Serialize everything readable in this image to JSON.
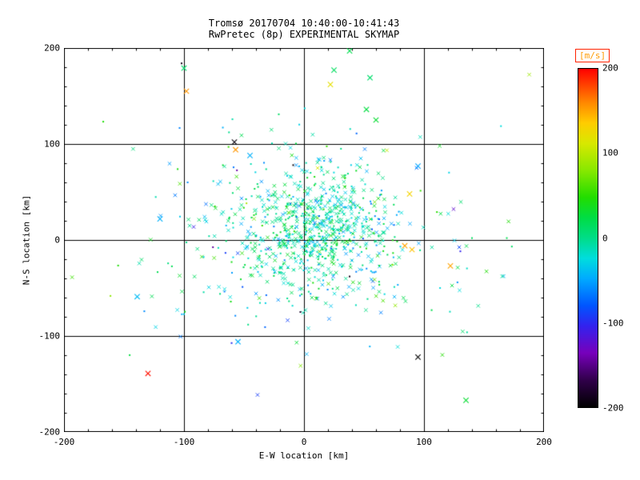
{
  "chart_data": {
    "type": "scatter",
    "title": "Tromsø 20170704 10:40:00-10:41:43",
    "subtitle": "RwPretec (8p) EXPERIMENTAL SKYMAP",
    "xlabel": "E-W location [km]",
    "ylabel": "N-S location [km]",
    "xlim": [
      -200,
      200
    ],
    "ylim": [
      -200,
      200
    ],
    "x_tick_labels": [
      "-200",
      "-100",
      "0",
      "100",
      "200"
    ],
    "y_tick_labels": [
      "200",
      "100",
      "0",
      "-100",
      "-200"
    ],
    "grid_values": [
      -100,
      0,
      100
    ],
    "grid": true,
    "n_points_approx": 1000,
    "colorbar": {
      "label": "[m/s]",
      "label_color": "#ff9900",
      "box_color": "#ff2200",
      "min": -200,
      "max": 200,
      "tick_labels": [
        "200",
        "100",
        "0",
        "-100",
        "-200"
      ],
      "stops": [
        {
          "t": 0.0,
          "color": "#000000"
        },
        {
          "t": 0.08,
          "color": "#30004a"
        },
        {
          "t": 0.16,
          "color": "#7700bb"
        },
        {
          "t": 0.24,
          "color": "#3322ee"
        },
        {
          "t": 0.3,
          "color": "#0055ff"
        },
        {
          "t": 0.38,
          "color": "#00aaff"
        },
        {
          "t": 0.44,
          "color": "#00dddd"
        },
        {
          "t": 0.5,
          "color": "#00dd88"
        },
        {
          "t": 0.56,
          "color": "#00dd44"
        },
        {
          "t": 0.62,
          "color": "#22dd00"
        },
        {
          "t": 0.7,
          "color": "#88e800"
        },
        {
          "t": 0.78,
          "color": "#d8e800"
        },
        {
          "t": 0.84,
          "color": "#ffcc00"
        },
        {
          "t": 0.9,
          "color": "#ff8800"
        },
        {
          "t": 1.0,
          "color": "#ff0000"
        }
      ]
    },
    "point_generation": {
      "seed": 20170704,
      "clusters": [
        {
          "count": 650,
          "cx": 10,
          "cy": 12,
          "sx": 30,
          "sy": 32,
          "v_mean": -5,
          "v_sd": 28,
          "x_fraction": 0.55
        },
        {
          "count": 280,
          "cx": -5,
          "cy": 5,
          "sx": 60,
          "sy": 48,
          "v_mean": -10,
          "v_sd": 35,
          "x_fraction": 0.55
        },
        {
          "count": 80,
          "cx": 5,
          "cy": 10,
          "sx": 95,
          "sy": 75,
          "v_mean": 0,
          "v_sd": 50,
          "x_fraction": 0.6
        }
      ]
    },
    "outliers": [
      {
        "x": 38,
        "y": 197,
        "v": 20,
        "m": "x"
      },
      {
        "x": -100,
        "y": 179,
        "v": 10,
        "m": "x"
      },
      {
        "x": -102,
        "y": 184,
        "v": -190,
        "m": "d"
      },
      {
        "x": -98,
        "y": 155,
        "v": 155,
        "m": "x"
      },
      {
        "x": 25,
        "y": 177,
        "v": 15,
        "m": "x"
      },
      {
        "x": 55,
        "y": 169,
        "v": 10,
        "m": "x"
      },
      {
        "x": 22,
        "y": 162,
        "v": 120,
        "m": "x"
      },
      {
        "x": 52,
        "y": 136,
        "v": 25,
        "m": "x"
      },
      {
        "x": 60,
        "y": 125,
        "v": 30,
        "m": "x"
      },
      {
        "x": -58,
        "y": 102,
        "v": -195,
        "m": "x"
      },
      {
        "x": -57,
        "y": 94,
        "v": 155,
        "m": "x"
      },
      {
        "x": -45,
        "y": 88,
        "v": -45,
        "m": "x"
      },
      {
        "x": 95,
        "y": 77,
        "v": -50,
        "m": "x"
      },
      {
        "x": 88,
        "y": 48,
        "v": 130,
        "m": "x"
      },
      {
        "x": -9,
        "y": 78,
        "v": -195,
        "m": "d"
      },
      {
        "x": -120,
        "y": 22,
        "v": -45,
        "m": "x"
      },
      {
        "x": 140,
        "y": 2,
        "v": 15,
        "m": "d"
      },
      {
        "x": 169,
        "y": 2,
        "v": 20,
        "m": "d"
      },
      {
        "x": 84,
        "y": -6,
        "v": 150,
        "m": "x"
      },
      {
        "x": 90,
        "y": -10,
        "v": 140,
        "m": "x"
      },
      {
        "x": 122,
        "y": -27,
        "v": 150,
        "m": "x"
      },
      {
        "x": 38,
        "y": -38,
        "v": -190,
        "m": "d"
      },
      {
        "x": -3,
        "y": -75,
        "v": -185,
        "m": "d"
      },
      {
        "x": -139,
        "y": -59,
        "v": -40,
        "m": "x"
      },
      {
        "x": -55,
        "y": -106,
        "v": -45,
        "m": "x"
      },
      {
        "x": 95,
        "y": -122,
        "v": -200,
        "m": "x"
      },
      {
        "x": -130,
        "y": -139,
        "v": 195,
        "m": "x"
      },
      {
        "x": 135,
        "y": -167,
        "v": 30,
        "m": "x"
      }
    ]
  }
}
